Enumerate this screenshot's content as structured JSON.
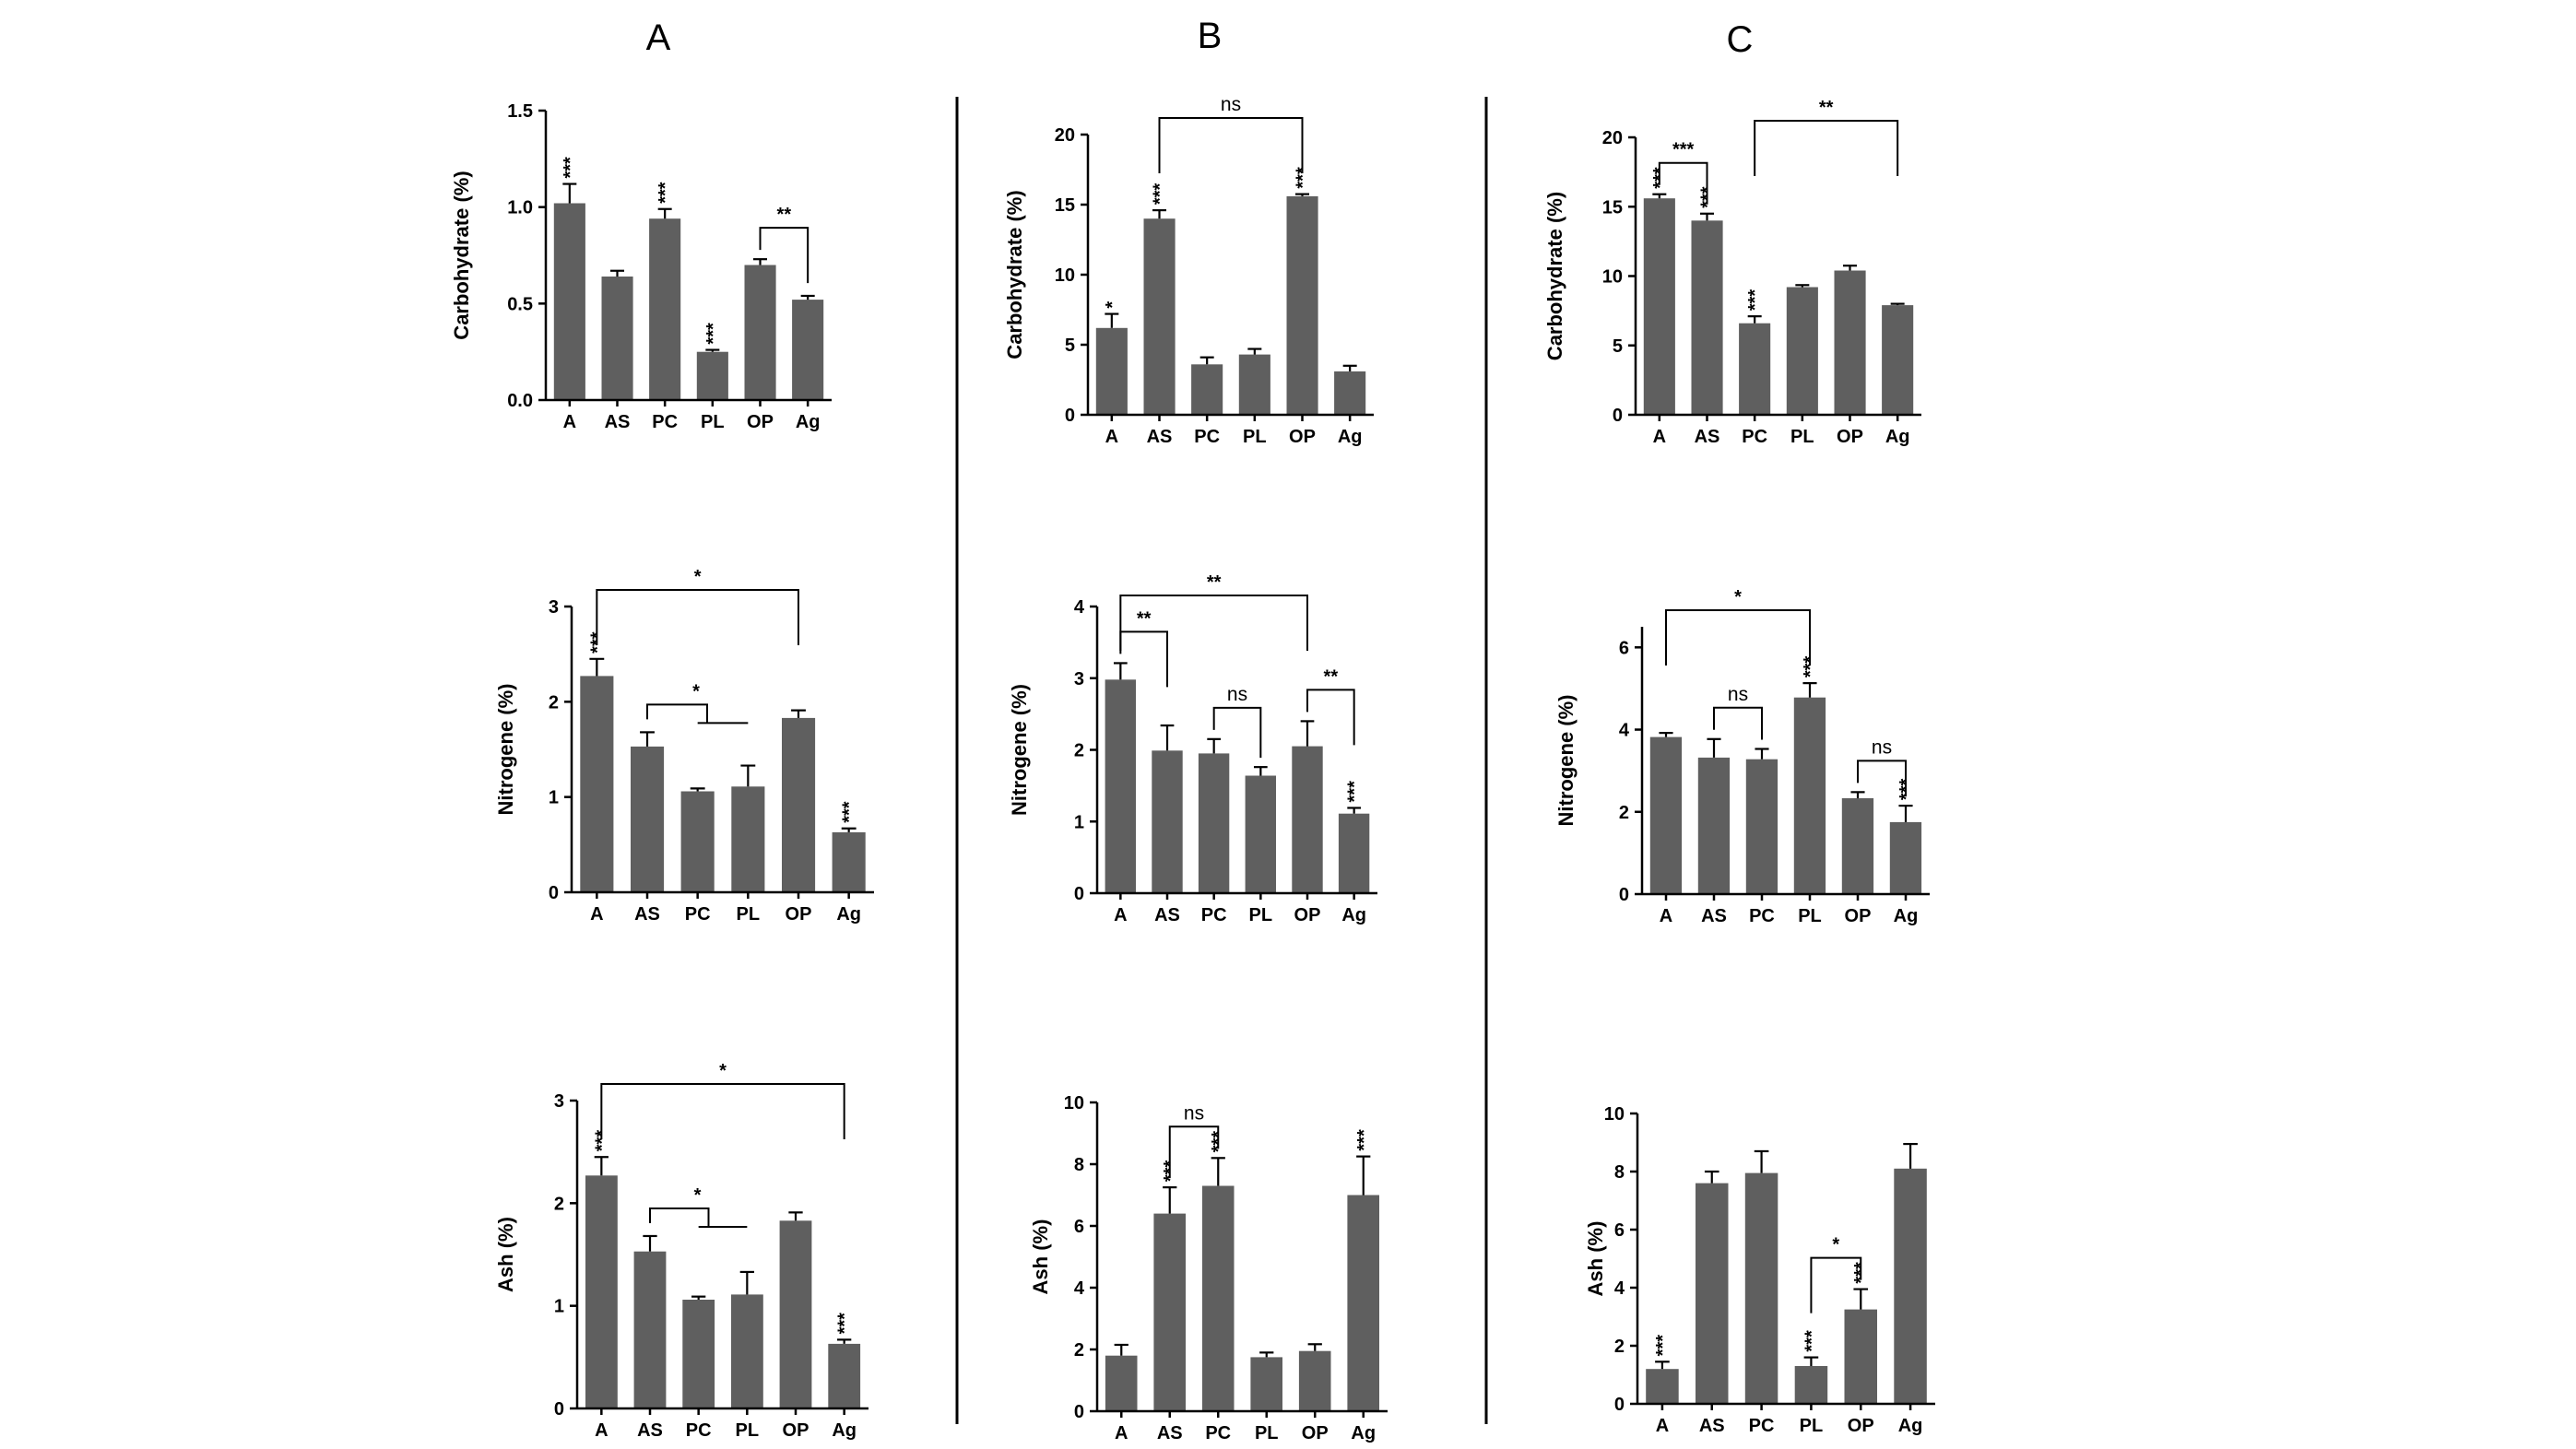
{
  "columns": [
    "A",
    "B",
    "C"
  ],
  "chart_data": [
    {
      "id": "A-carb",
      "type": "bar",
      "column": "A",
      "ylabel": "Carbohydrate (%)",
      "categories": [
        "A",
        "AS",
        "PC",
        "PL",
        "OP",
        "Ag"
      ],
      "values": [
        1.02,
        0.64,
        0.94,
        0.25,
        0.7,
        0.52
      ],
      "errors": [
        0.1,
        0.03,
        0.05,
        0.01,
        0.03,
        0.02
      ],
      "ylim": [
        0,
        1.5
      ],
      "yticks": [
        "0.0",
        "0.5",
        "1.0",
        "1.5"
      ],
      "bar_labels": [
        "***",
        "",
        "***",
        "***",
        "",
        ""
      ],
      "comparisons": [
        {
          "bars": [
            4,
            5
          ],
          "label": "**"
        }
      ]
    },
    {
      "id": "A-nitro",
      "type": "bar",
      "column": "A",
      "ylabel": "Nitrogene (%)",
      "categories": [
        "A",
        "AS",
        "PC",
        "PL",
        "OP",
        "Ag"
      ],
      "values": [
        2.27,
        1.53,
        1.06,
        1.11,
        1.83,
        0.63
      ],
      "errors": [
        0.18,
        0.15,
        0.03,
        0.22,
        0.08,
        0.04
      ],
      "ylim": [
        0,
        3
      ],
      "yticks": [
        "0",
        "1",
        "2",
        "3"
      ],
      "bar_labels": [
        "***",
        "",
        "",
        "",
        "",
        "***"
      ],
      "comparisons": [
        {
          "bars": [
            0,
            4
          ],
          "label": "*"
        },
        {
          "bars": [
            1,
            [
              2,
              3
            ]
          ],
          "label": "*"
        }
      ]
    },
    {
      "id": "A-ash",
      "type": "bar",
      "column": "A",
      "ylabel": "Ash (%)",
      "categories": [
        "A",
        "AS",
        "PC",
        "PL",
        "OP",
        "Ag"
      ],
      "values": [
        2.27,
        1.53,
        1.06,
        1.11,
        1.83,
        0.63
      ],
      "errors": [
        0.18,
        0.15,
        0.03,
        0.22,
        0.08,
        0.04
      ],
      "ylim": [
        0,
        3
      ],
      "yticks": [
        "0",
        "1",
        "2",
        "3"
      ],
      "bar_labels": [
        "***",
        "",
        "",
        "",
        "",
        "***"
      ],
      "comparisons": [
        {
          "bars": [
            0,
            5
          ],
          "label": "*"
        },
        {
          "bars": [
            1,
            [
              2,
              3
            ]
          ],
          "label": "*"
        }
      ]
    },
    {
      "id": "B-carb",
      "type": "bar",
      "column": "B",
      "ylabel": "Carbohydrate (%)",
      "categories": [
        "A",
        "AS",
        "PC",
        "PL",
        "OP",
        "Ag"
      ],
      "values": [
        6.2,
        14.0,
        3.6,
        4.3,
        15.6,
        3.1
      ],
      "errors": [
        1.0,
        0.6,
        0.5,
        0.4,
        0.15,
        0.4
      ],
      "ylim": [
        0,
        20
      ],
      "yticks": [
        "0",
        "5",
        "10",
        "15",
        "20"
      ],
      "bar_labels": [
        "*",
        "***",
        "",
        "",
        "***",
        ""
      ],
      "comparisons": [
        {
          "bars": [
            1,
            4
          ],
          "label": "ns"
        }
      ]
    },
    {
      "id": "B-nitro",
      "type": "bar",
      "column": "B",
      "ylabel": "Nitrogene (%)",
      "categories": [
        "A",
        "AS",
        "PC",
        "PL",
        "OP",
        "Ag"
      ],
      "values": [
        2.98,
        1.99,
        1.95,
        1.64,
        2.05,
        1.11
      ],
      "errors": [
        0.23,
        0.35,
        0.2,
        0.12,
        0.35,
        0.08
      ],
      "ylim": [
        0,
        4
      ],
      "yticks": [
        "0",
        "1",
        "2",
        "3",
        "4"
      ],
      "bar_labels": [
        "",
        "",
        "",
        "",
        "",
        "***"
      ],
      "comparisons": [
        {
          "bars": [
            0,
            4
          ],
          "label": "**"
        },
        {
          "bars": [
            0,
            1
          ],
          "label": "**"
        },
        {
          "bars": [
            2,
            3
          ],
          "label": "ns"
        },
        {
          "bars": [
            4,
            5
          ],
          "label": "**"
        }
      ]
    },
    {
      "id": "B-ash",
      "type": "bar",
      "column": "B",
      "ylabel": "Ash (%)",
      "categories": [
        "A",
        "AS",
        "PC",
        "PL",
        "OP",
        "Ag"
      ],
      "values": [
        1.8,
        6.4,
        7.3,
        1.75,
        1.95,
        7.0
      ],
      "errors": [
        0.35,
        0.85,
        0.9,
        0.15,
        0.22,
        1.25
      ],
      "ylim": [
        0,
        10
      ],
      "yticks": [
        "0",
        "2",
        "4",
        "6",
        "8",
        "10"
      ],
      "bar_labels": [
        "",
        "***",
        "***",
        "",
        "",
        "***"
      ],
      "comparisons": [
        {
          "bars": [
            1,
            2
          ],
          "label": "ns"
        }
      ]
    },
    {
      "id": "C-carb",
      "type": "bar",
      "column": "C",
      "ylabel": "Carbohydrate (%)",
      "categories": [
        "A",
        "AS",
        "PC",
        "PL",
        "OP",
        "Ag"
      ],
      "values": [
        15.6,
        14.0,
        6.6,
        9.2,
        10.4,
        7.9
      ],
      "errors": [
        0.3,
        0.5,
        0.5,
        0.15,
        0.35,
        0.1
      ],
      "ylim": [
        0,
        20
      ],
      "yticks": [
        "0",
        "5",
        "10",
        "15",
        "20"
      ],
      "bar_labels": [
        "***",
        "***",
        "***",
        "",
        "",
        ""
      ],
      "comparisons": [
        {
          "bars": [
            0,
            1
          ],
          "label": "***"
        },
        {
          "bars": [
            2,
            5
          ],
          "label": "**"
        }
      ]
    },
    {
      "id": "C-nitro",
      "type": "bar",
      "column": "C",
      "ylabel": "Nitrogene (%)",
      "categories": [
        "A",
        "AS",
        "PC",
        "PL",
        "OP",
        "Ag"
      ],
      "values": [
        3.82,
        3.32,
        3.28,
        4.78,
        2.33,
        1.75
      ],
      "errors": [
        0.1,
        0.45,
        0.25,
        0.35,
        0.15,
        0.4
      ],
      "ylim": [
        0,
        6.5
      ],
      "yticks": [
        "0",
        "2",
        "4",
        "6"
      ],
      "bar_labels": [
        "",
        "",
        "",
        "***",
        "",
        "***"
      ],
      "comparisons": [
        {
          "bars": [
            0,
            3
          ],
          "label": "*"
        },
        {
          "bars": [
            1,
            2
          ],
          "label": "ns"
        },
        {
          "bars": [
            4,
            5
          ],
          "label": "ns"
        }
      ]
    },
    {
      "id": "C-ash",
      "type": "bar",
      "column": "C",
      "ylabel": "Ash (%)",
      "categories": [
        "A",
        "AS",
        "PC",
        "PL",
        "OP",
        "Ag"
      ],
      "values": [
        1.2,
        7.6,
        7.95,
        1.3,
        3.25,
        8.1
      ],
      "errors": [
        0.25,
        0.4,
        0.75,
        0.3,
        0.7,
        0.85
      ],
      "ylim": [
        0,
        10
      ],
      "yticks": [
        "0",
        "2",
        "4",
        "6",
        "8",
        "10"
      ],
      "bar_labels": [
        "***",
        "",
        "",
        "***",
        "***",
        ""
      ],
      "comparisons": [
        {
          "bars": [
            3,
            4
          ],
          "label": "*"
        }
      ]
    }
  ]
}
